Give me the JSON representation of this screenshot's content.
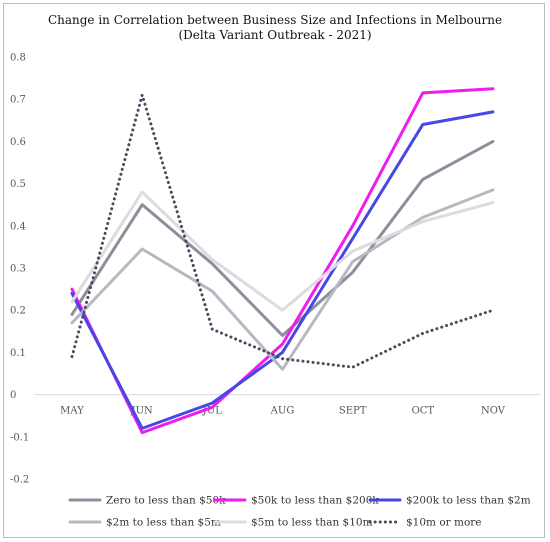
{
  "chart_data": {
    "type": "line",
    "title": "Change in Correlation between Business Size and Infections in Melbourne",
    "subtitle": "(Delta Variant Outbreak - 2021)",
    "xlabel": "",
    "ylabel": "",
    "categories": [
      "MAY",
      "JUN",
      "JUL",
      "AUG",
      "SEPT",
      "OCT",
      "NOV"
    ],
    "ylim": [
      -0.2,
      0.8
    ],
    "yticks": [
      "-0.2",
      "-0.1",
      "0",
      "0.1",
      "0.2",
      "0.3",
      "0.4",
      "0.5",
      "0.6",
      "0.7",
      "0.8"
    ],
    "grid": false,
    "legend_position": "bottom",
    "series": [
      {
        "name": "Zero to less than $50k",
        "color": "#8e8e9c",
        "dash": "solid",
        "values": [
          0.19,
          0.45,
          0.31,
          0.14,
          0.29,
          0.51,
          0.6
        ]
      },
      {
        "name": "$50k to less than $200k",
        "color": "#ee1cee",
        "dash": "solid",
        "values": [
          0.25,
          -0.09,
          -0.03,
          0.12,
          0.4,
          0.715,
          0.725
        ]
      },
      {
        "name": "$200k to less than $2m",
        "color": "#4747e6",
        "dash": "solid",
        "values": [
          0.24,
          -0.08,
          -0.02,
          0.1,
          0.37,
          0.64,
          0.67
        ]
      },
      {
        "name": "$2m to less than $5m",
        "color": "#b8b8c2",
        "dash": "solid",
        "values": [
          0.17,
          0.345,
          0.245,
          0.06,
          0.315,
          0.42,
          0.485
        ]
      },
      {
        "name": "$5m to less than $10m",
        "color": "#dcdcdc",
        "dash": "solid",
        "values": [
          0.22,
          0.48,
          0.32,
          0.2,
          0.34,
          0.41,
          0.455
        ]
      },
      {
        "name": "$10m or more",
        "color": "#4a4a5e",
        "dash": "dotted",
        "values": [
          0.09,
          0.71,
          0.155,
          0.085,
          0.065,
          0.145,
          0.2
        ]
      }
    ]
  }
}
